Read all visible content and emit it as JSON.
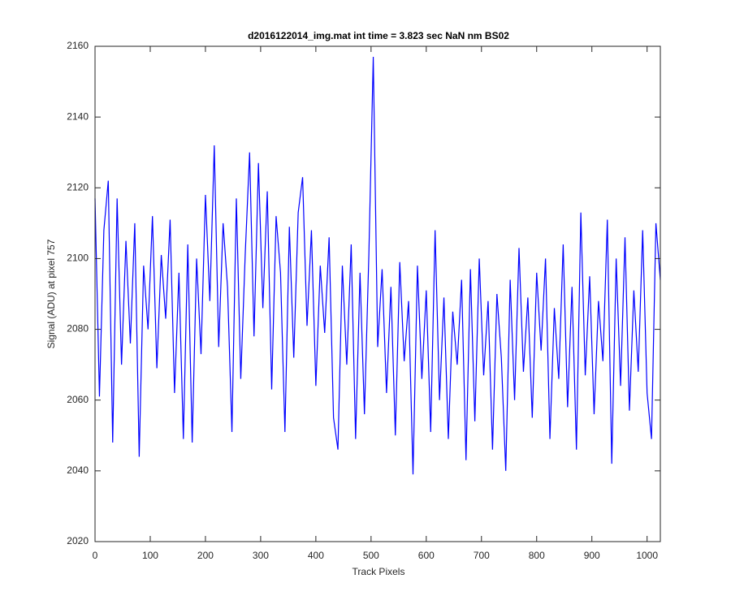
{
  "chart_data": {
    "type": "line",
    "title": "d2016122014_img.mat int time = 3.823 sec  NaN nm BS02",
    "x_label": "Track Pixels",
    "y_label": "Signal (ADU) at pixel 757",
    "xlim": [
      0,
      1024
    ],
    "ylim": [
      2020,
      2160
    ],
    "xticks": [
      0,
      100,
      200,
      300,
      400,
      500,
      600,
      700,
      800,
      900,
      1000
    ],
    "yticks": [
      2020,
      2040,
      2060,
      2080,
      2100,
      2120,
      2140,
      2160
    ],
    "grid": false,
    "series": [
      {
        "name": "signal",
        "color": "#0000ff",
        "x": [
          0,
          8,
          16,
          24,
          32,
          40,
          48,
          56,
          64,
          72,
          80,
          88,
          96,
          104,
          112,
          120,
          128,
          136,
          144,
          152,
          160,
          168,
          176,
          184,
          192,
          200,
          208,
          216,
          224,
          232,
          240,
          248,
          256,
          264,
          272,
          280,
          288,
          296,
          304,
          312,
          320,
          328,
          336,
          344,
          352,
          360,
          368,
          376,
          384,
          392,
          400,
          408,
          416,
          424,
          432,
          440,
          448,
          456,
          464,
          472,
          480,
          488,
          496,
          504,
          512,
          520,
          528,
          536,
          544,
          552,
          560,
          568,
          576,
          584,
          592,
          600,
          608,
          616,
          624,
          632,
          640,
          648,
          656,
          664,
          672,
          680,
          688,
          696,
          704,
          712,
          720,
          728,
          736,
          744,
          752,
          760,
          768,
          776,
          784,
          792,
          800,
          808,
          816,
          824,
          832,
          840,
          848,
          856,
          864,
          872,
          880,
          888,
          896,
          904,
          912,
          920,
          928,
          936,
          944,
          952,
          960,
          968,
          976,
          984,
          992,
          1000,
          1008,
          1016,
          1024
        ],
        "values": [
          2117,
          2061,
          2108,
          2122,
          2048,
          2117,
          2070,
          2105,
          2076,
          2110,
          2044,
          2098,
          2080,
          2112,
          2069,
          2101,
          2083,
          2111,
          2062,
          2096,
          2049,
          2104,
          2048,
          2100,
          2073,
          2118,
          2088,
          2132,
          2075,
          2110,
          2092,
          2051,
          2117,
          2066,
          2101,
          2130,
          2078,
          2127,
          2086,
          2119,
          2063,
          2112,
          2096,
          2051,
          2109,
          2072,
          2113,
          2123,
          2081,
          2108,
          2064,
          2098,
          2079,
          2106,
          2055,
          2046,
          2098,
          2070,
          2104,
          2049,
          2096,
          2056,
          2101,
          2157,
          2075,
          2097,
          2062,
          2092,
          2050,
          2099,
          2071,
          2088,
          2039,
          2098,
          2066,
          2091,
          2051,
          2108,
          2060,
          2089,
          2049,
          2085,
          2070,
          2094,
          2043,
          2097,
          2054,
          2100,
          2067,
          2088,
          2046,
          2090,
          2072,
          2040,
          2094,
          2060,
          2103,
          2068,
          2089,
          2055,
          2096,
          2074,
          2100,
          2049,
          2086,
          2066,
          2104,
          2058,
          2092,
          2046,
          2113,
          2067,
          2095,
          2056,
          2088,
          2071,
          2111,
          2042,
          2100,
          2064,
          2106,
          2057,
          2091,
          2068,
          2108,
          2062,
          2049,
          2110,
          2094
        ]
      }
    ]
  }
}
